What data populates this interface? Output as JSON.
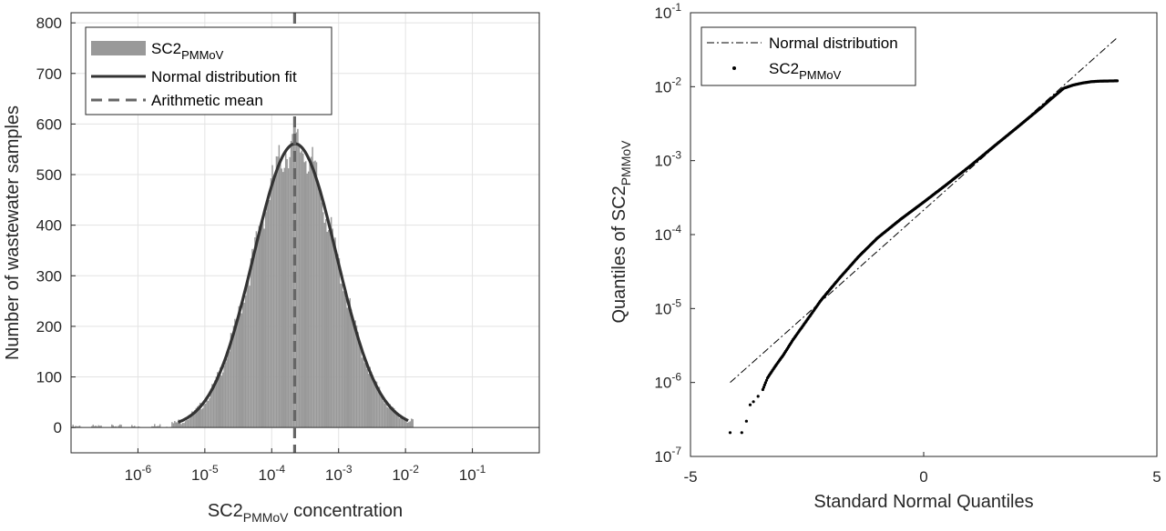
{
  "chart_data": [
    {
      "type": "bar",
      "xlabel": {
        "main": "SC2",
        "sub": "PMMoV",
        "suffix": " concentration"
      },
      "ylabel": "Number of wastewater samples",
      "x_scale": "log",
      "xlim": [
        1e-07,
        1
      ],
      "ylim": [
        -50,
        820
      ],
      "x_ticks": [
        {
          "value": 1e-06,
          "base": "10",
          "exp": "-6"
        },
        {
          "value": 1e-05,
          "base": "10",
          "exp": "-5"
        },
        {
          "value": 0.0001,
          "base": "10",
          "exp": "-4"
        },
        {
          "value": 0.001,
          "base": "10",
          "exp": "-3"
        },
        {
          "value": 0.01,
          "base": "10",
          "exp": "-2"
        },
        {
          "value": 0.1,
          "base": "10",
          "exp": "-1"
        }
      ],
      "y_ticks": [
        "0",
        "100",
        "200",
        "300",
        "400",
        "500",
        "600",
        "700",
        "800"
      ],
      "grid": true,
      "legend_position": "top-left",
      "legend": [
        {
          "kind": "patch",
          "label": "SC2",
          "sub": "PMMoV"
        },
        {
          "kind": "line",
          "label": "Normal distribution fit",
          "sub": ""
        },
        {
          "kind": "dash",
          "label": "Arithmetic mean",
          "sub": ""
        }
      ],
      "histogram": {
        "color": "#999999",
        "log10_center": -3.65,
        "log10_sd": 0.62,
        "peak_count": 561,
        "log10_range": [
          -7.0,
          -1.9
        ]
      },
      "normal_fit": {
        "log10_mean": -3.65,
        "log10_sd": 0.62,
        "peak": 561,
        "log10_range": [
          -5.4,
          -1.95
        ],
        "color": "#333333"
      },
      "arithmetic_mean": {
        "value": 0.00022,
        "color": "#666666"
      }
    },
    {
      "type": "scatter",
      "xlabel": "Standard Normal Quantiles",
      "ylabel": {
        "main": "Quantiles of SC2",
        "sub": "PMMoV"
      },
      "y_scale": "log",
      "xlim": [
        -5,
        5
      ],
      "ylim": [
        1e-07,
        0.1
      ],
      "x_ticks": [
        "-5",
        "0",
        "5"
      ],
      "y_ticks": [
        {
          "value": 1e-07,
          "base": "10",
          "exp": "-7"
        },
        {
          "value": 1e-06,
          "base": "10",
          "exp": "-6"
        },
        {
          "value": 1e-05,
          "base": "10",
          "exp": "-5"
        },
        {
          "value": 0.0001,
          "base": "10",
          "exp": "-4"
        },
        {
          "value": 0.001,
          "base": "10",
          "exp": "-3"
        },
        {
          "value": 0.01,
          "base": "10",
          "exp": "-2"
        },
        {
          "value": 0.1,
          "base": "10",
          "exp": "-1"
        }
      ],
      "grid": false,
      "legend_position": "top-left",
      "legend": [
        {
          "kind": "dashdot",
          "label": "Normal distribution",
          "sub": ""
        },
        {
          "kind": "dot",
          "label": "SC2",
          "sub": "PMMoV"
        }
      ],
      "reference_line": {
        "x": [
          -4.15,
          4.15
        ],
        "y": [
          1e-06,
          0.046
        ]
      },
      "points": [
        [
          -4.15,
          2.1e-07
        ],
        [
          -3.9,
          2.1e-07
        ],
        [
          -3.8,
          3e-07
        ],
        [
          -3.72,
          5e-07
        ],
        [
          -3.65,
          5.5e-07
        ],
        [
          -3.55,
          6.5e-07
        ],
        [
          -3.45,
          8e-07
        ],
        [
          -3.35,
          1.15e-06
        ],
        [
          -3.2,
          1.6e-06
        ],
        [
          -3.0,
          2.4e-06
        ],
        [
          -2.8,
          3.8e-06
        ],
        [
          -2.5,
          7e-06
        ],
        [
          -2.2,
          1.3e-05
        ],
        [
          -1.8,
          2.6e-05
        ],
        [
          -1.4,
          5e-05
        ],
        [
          -1.0,
          8.9e-05
        ],
        [
          -0.5,
          0.00016
        ],
        [
          0.0,
          0.000275
        ],
        [
          0.5,
          0.00048
        ],
        [
          1.0,
          0.00085
        ],
        [
          1.5,
          0.00155
        ],
        [
          2.0,
          0.0028
        ],
        [
          2.5,
          0.0051
        ],
        [
          2.75,
          0.007
        ],
        [
          3.0,
          0.0095
        ],
        [
          3.2,
          0.0105
        ],
        [
          3.4,
          0.0112
        ],
        [
          3.6,
          0.0117
        ],
        [
          3.8,
          0.0119
        ],
        [
          4.15,
          0.012
        ]
      ]
    }
  ]
}
